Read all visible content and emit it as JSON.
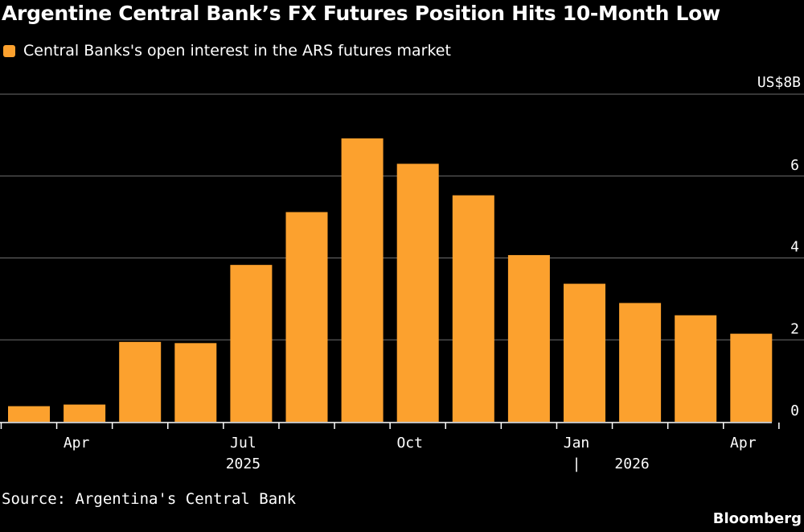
{
  "title": "Argentine Central Bank’s FX Futures Position Hits 10-Month Low",
  "legend": {
    "label": "Central Banks's open interest in the ARS futures market",
    "color": "#fca12e"
  },
  "source": "Source: Argentina's Central Bank",
  "brand": "Bloomberg",
  "chart_data": {
    "type": "bar",
    "unit_label": "US$8B",
    "ylim": [
      0,
      8
    ],
    "yticks": [
      0,
      2,
      4,
      6
    ],
    "bar_color": "#fca12e",
    "grid": true,
    "categories": [
      "Mar 2025",
      "Apr 2025",
      "May 2025",
      "Jun 2025",
      "Jul 2025",
      "Aug 2025",
      "Sep 2025",
      "Oct 2025",
      "Nov 2025",
      "Dec 2025",
      "Jan 2026",
      "Feb 2026",
      "Mar 2026",
      "Apr 2026"
    ],
    "values": [
      0.38,
      0.42,
      1.95,
      1.92,
      3.83,
      5.12,
      6.92,
      6.3,
      5.53,
      4.07,
      3.37,
      2.9,
      2.6,
      2.15
    ],
    "x_tick_labels": [
      {
        "label": "Apr",
        "at": "Apr 2025"
      },
      {
        "label": "Jul",
        "at": "Jul 2025"
      },
      {
        "label": "Oct",
        "at": "Oct 2025"
      },
      {
        "label": "Jan",
        "at": "Jan 2026"
      },
      {
        "label": "Apr",
        "at": "Apr 2026"
      }
    ],
    "year_labels": [
      {
        "label": "2025",
        "at": "Jul 2025"
      },
      {
        "label": "2026",
        "at": "Feb 2026"
      }
    ],
    "year_separator": "|"
  }
}
